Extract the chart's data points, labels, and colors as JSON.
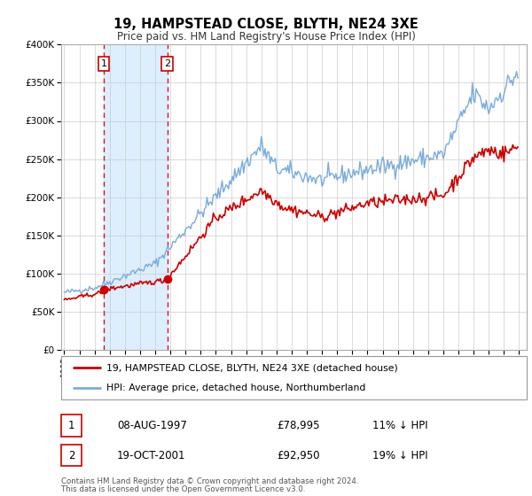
{
  "title": "19, HAMPSTEAD CLOSE, BLYTH, NE24 3XE",
  "subtitle": "Price paid vs. HM Land Registry's House Price Index (HPI)",
  "legend_line1": "19, HAMPSTEAD CLOSE, BLYTH, NE24 3XE (detached house)",
  "legend_line2": "HPI: Average price, detached house, Northumberland",
  "transaction1_date": "08-AUG-1997",
  "transaction1_price": "£78,995",
  "transaction1_hpi": "11% ↓ HPI",
  "transaction2_date": "19-OCT-2001",
  "transaction2_price": "£92,950",
  "transaction2_hpi": "19% ↓ HPI",
  "footer1": "Contains HM Land Registry data © Crown copyright and database right 2024.",
  "footer2": "This data is licensed under the Open Government Licence v3.0.",
  "price_color": "#cc0000",
  "hpi_color": "#7aabdc",
  "marker_color": "#cc0000",
  "shade_color": "#ddeeff",
  "transaction1_x": 1997.6,
  "transaction2_x": 2001.8,
  "transaction1_y": 78995,
  "transaction2_y": 92950,
  "ylim": [
    0,
    400000
  ],
  "xlim_start": 1994.8,
  "xlim_end": 2025.5
}
